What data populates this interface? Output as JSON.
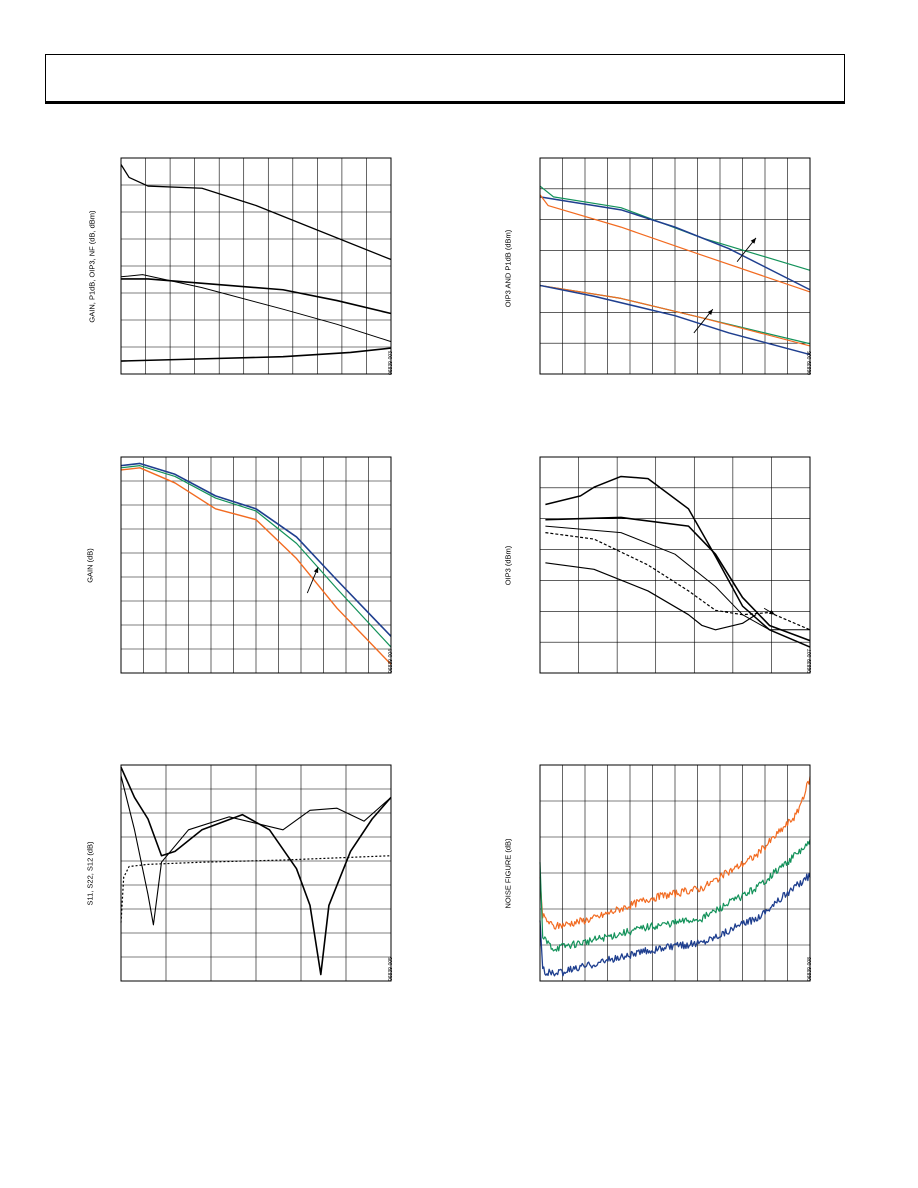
{
  "colors": {
    "black": "#000000",
    "orange": "#f26b21",
    "green": "#13925a",
    "blue": "#1f3f8f"
  },
  "charts": [
    {
      "id": "c1",
      "type": "line",
      "ylabel": "GAIN, P1dB, OIP3, NF (dB, dBm)",
      "fig_id": "06839-003",
      "grid": [
        11,
        8
      ],
      "series": [
        {
          "name": "",
          "color": "black",
          "width": 1.3,
          "points": [
            [
              0,
              0.97
            ],
            [
              0.03,
              0.91
            ],
            [
              0.1,
              0.87
            ],
            [
              0.3,
              0.86
            ],
            [
              0.5,
              0.78
            ],
            [
              0.7,
              0.68
            ],
            [
              1,
              0.53
            ]
          ]
        },
        {
          "name": "",
          "color": "black",
          "width": 1.6,
          "points": [
            [
              0,
              0.44
            ],
            [
              0.1,
              0.44
            ],
            [
              0.4,
              0.41
            ],
            [
              0.6,
              0.39
            ],
            [
              0.8,
              0.34
            ],
            [
              1,
              0.28
            ]
          ]
        },
        {
          "name": "",
          "color": "black",
          "width": 1,
          "points": [
            [
              0,
              0.45
            ],
            [
              0.08,
              0.46
            ],
            [
              0.3,
              0.4
            ],
            [
              0.6,
              0.3
            ],
            [
              0.8,
              0.23
            ],
            [
              1,
              0.15
            ]
          ]
        },
        {
          "name": "",
          "color": "black",
          "width": 1.6,
          "points": [
            [
              0,
              0.06
            ],
            [
              0.3,
              0.07
            ],
            [
              0.6,
              0.08
            ],
            [
              0.85,
              0.1
            ],
            [
              1,
              0.12
            ]
          ]
        }
      ]
    },
    {
      "id": "c2",
      "type": "line",
      "ylabel": "OIP3 AND P1dB (dBm)",
      "fig_id": "06839-006",
      "grid": [
        12,
        7
      ],
      "series": [
        {
          "name": "",
          "color": "green",
          "width": 1.2,
          "points": [
            [
              0,
              0.87
            ],
            [
              0.05,
              0.82
            ],
            [
              0.3,
              0.77
            ],
            [
              0.6,
              0.63
            ],
            [
              1,
              0.48
            ]
          ]
        },
        {
          "name": "",
          "color": "blue",
          "width": 1.5,
          "points": [
            [
              0,
              0.82
            ],
            [
              0.1,
              0.8
            ],
            [
              0.3,
              0.76
            ],
            [
              0.5,
              0.68
            ],
            [
              0.7,
              0.58
            ],
            [
              1,
              0.39
            ]
          ]
        },
        {
          "name": "",
          "color": "orange",
          "width": 1.2,
          "points": [
            [
              0,
              0.83
            ],
            [
              0.03,
              0.78
            ],
            [
              0.3,
              0.68
            ],
            [
              0.6,
              0.55
            ],
            [
              1,
              0.38
            ]
          ]
        },
        {
          "name": "",
          "color": "green",
          "width": 1.2,
          "points": [
            [
              0,
              0.41
            ],
            [
              0.3,
              0.35
            ],
            [
              0.6,
              0.26
            ],
            [
              1,
              0.14
            ]
          ]
        },
        {
          "name": "",
          "color": "orange",
          "width": 1.2,
          "points": [
            [
              0,
              0.41
            ],
            [
              0.3,
              0.35
            ],
            [
              0.6,
              0.26
            ],
            [
              1,
              0.13
            ]
          ]
        },
        {
          "name": "",
          "color": "blue",
          "width": 1.5,
          "points": [
            [
              0,
              0.41
            ],
            [
              0.2,
              0.36
            ],
            [
              0.5,
              0.27
            ],
            [
              0.7,
              0.19
            ],
            [
              1,
              0.09
            ]
          ]
        }
      ],
      "arrows": [
        [
          0.73,
          0.52,
          0.8,
          0.63
        ],
        [
          0.57,
          0.19,
          0.64,
          0.3
        ]
      ]
    },
    {
      "id": "c3",
      "type": "line",
      "ylabel": "GAIN (dB)",
      "fig_id": "06839-004",
      "grid": [
        12,
        9
      ],
      "series": [
        {
          "name": "",
          "color": "blue",
          "width": 1.6,
          "points": [
            [
              0,
              0.96
            ],
            [
              0.07,
              0.97
            ],
            [
              0.2,
              0.92
            ],
            [
              0.35,
              0.82
            ],
            [
              0.5,
              0.76
            ],
            [
              0.65,
              0.63
            ],
            [
              0.8,
              0.43
            ],
            [
              1,
              0.17
            ]
          ]
        },
        {
          "name": "",
          "color": "green",
          "width": 1.2,
          "points": [
            [
              0,
              0.95
            ],
            [
              0.07,
              0.96
            ],
            [
              0.2,
              0.91
            ],
            [
              0.35,
              0.81
            ],
            [
              0.5,
              0.75
            ],
            [
              0.65,
              0.6
            ],
            [
              0.8,
              0.39
            ],
            [
              1,
              0.12
            ]
          ]
        },
        {
          "name": "",
          "color": "orange",
          "width": 1.4,
          "points": [
            [
              0,
              0.94
            ],
            [
              0.07,
              0.95
            ],
            [
              0.2,
              0.88
            ],
            [
              0.35,
              0.76
            ],
            [
              0.5,
              0.71
            ],
            [
              0.65,
              0.53
            ],
            [
              0.8,
              0.3
            ],
            [
              1,
              0.04
            ]
          ]
        }
      ],
      "arrows": [
        [
          0.69,
          0.37,
          0.73,
          0.49
        ]
      ]
    },
    {
      "id": "c4",
      "type": "line",
      "ylabel": "OIP3 (dBm)",
      "fig_id": "06839-007",
      "grid": [
        7,
        7
      ],
      "series": [
        {
          "name": "",
          "color": "black",
          "width": 1.5,
          "points": [
            [
              0.02,
              0.78
            ],
            [
              0.15,
              0.82
            ],
            [
              0.2,
              0.86
            ],
            [
              0.3,
              0.91
            ],
            [
              0.4,
              0.9
            ],
            [
              0.55,
              0.76
            ],
            [
              0.65,
              0.54
            ],
            [
              0.75,
              0.31
            ],
            [
              0.85,
              0.2
            ],
            [
              1,
              0.12
            ]
          ]
        },
        {
          "name": "",
          "color": "black",
          "width": 1.6,
          "points": [
            [
              0.02,
              0.71
            ],
            [
              0.3,
              0.72
            ],
            [
              0.55,
              0.68
            ],
            [
              0.65,
              0.55
            ],
            [
              0.75,
              0.35
            ],
            [
              0.85,
              0.22
            ],
            [
              1,
              0.15
            ]
          ]
        },
        {
          "name": "",
          "color": "black",
          "width": 1,
          "points": [
            [
              0.02,
              0.68
            ],
            [
              0.3,
              0.65
            ],
            [
              0.5,
              0.55
            ],
            [
              0.65,
              0.4
            ],
            [
              0.75,
              0.27
            ],
            [
              0.85,
              0.2
            ],
            [
              1,
              0.2
            ]
          ]
        },
        {
          "name": "",
          "color": "black",
          "width": 1.2,
          "dash": "3,2",
          "points": [
            [
              0.02,
              0.65
            ],
            [
              0.2,
              0.62
            ],
            [
              0.4,
              0.5
            ],
            [
              0.55,
              0.38
            ],
            [
              0.65,
              0.29
            ],
            [
              0.75,
              0.27
            ],
            [
              0.85,
              0.28
            ],
            [
              1,
              0.2
            ]
          ]
        },
        {
          "name": "",
          "color": "black",
          "width": 1.2,
          "points": [
            [
              0.02,
              0.51
            ],
            [
              0.2,
              0.48
            ],
            [
              0.4,
              0.38
            ],
            [
              0.55,
              0.27
            ],
            [
              0.6,
              0.22
            ],
            [
              0.65,
              0.2
            ],
            [
              0.75,
              0.23
            ],
            [
              0.8,
              0.27
            ]
          ]
        }
      ],
      "arrows": [
        [
          0.83,
          0.3,
          0.87,
          0.27
        ]
      ]
    },
    {
      "id": "c5",
      "type": "line",
      "ylabel": "S11, S22, S12 (dB)",
      "fig_id": "06839-005",
      "grid": [
        6,
        9
      ],
      "series": [
        {
          "name": "",
          "color": "black",
          "width": 1.6,
          "points": [
            [
              0,
              0.99
            ],
            [
              0.05,
              0.85
            ],
            [
              0.1,
              0.75
            ],
            [
              0.15,
              0.58
            ],
            [
              0.2,
              0.6
            ],
            [
              0.3,
              0.7
            ],
            [
              0.45,
              0.77
            ],
            [
              0.55,
              0.7
            ],
            [
              0.65,
              0.52
            ],
            [
              0.7,
              0.35
            ],
            [
              0.74,
              0.03
            ],
            [
              0.77,
              0.35
            ],
            [
              0.85,
              0.6
            ],
            [
              0.93,
              0.75
            ],
            [
              1,
              0.85
            ]
          ]
        },
        {
          "name": "",
          "color": "black",
          "width": 1.1,
          "points": [
            [
              0,
              0.95
            ],
            [
              0.05,
              0.7
            ],
            [
              0.1,
              0.4
            ],
            [
              0.12,
              0.26
            ],
            [
              0.15,
              0.55
            ],
            [
              0.25,
              0.7
            ],
            [
              0.4,
              0.76
            ],
            [
              0.6,
              0.7
            ],
            [
              0.7,
              0.79
            ],
            [
              0.8,
              0.8
            ],
            [
              0.9,
              0.74
            ],
            [
              1,
              0.85
            ]
          ]
        },
        {
          "name": "",
          "color": "black",
          "width": 1.2,
          "dash": "2,2",
          "points": [
            [
              0,
              0.27
            ],
            [
              0.01,
              0.48
            ],
            [
              0.03,
              0.53
            ],
            [
              0.1,
              0.54
            ],
            [
              0.3,
              0.55
            ],
            [
              0.6,
              0.56
            ],
            [
              0.8,
              0.57
            ],
            [
              1,
              0.58
            ]
          ]
        }
      ]
    },
    {
      "id": "c6",
      "type": "line",
      "ylabel": "NOISE FIGURE (dB)",
      "fig_id": "06839-008",
      "grid": [
        12,
        6
      ],
      "noise": true,
      "series": [
        {
          "name": "",
          "color": "orange",
          "width": 1.2,
          "points": [
            [
              0,
              0.48
            ],
            [
              0.01,
              0.3
            ],
            [
              0.05,
              0.25
            ],
            [
              0.2,
              0.29
            ],
            [
              0.4,
              0.38
            ],
            [
              0.6,
              0.43
            ],
            [
              0.8,
              0.58
            ],
            [
              0.95,
              0.77
            ],
            [
              1,
              0.94
            ]
          ]
        },
        {
          "name": "",
          "color": "green",
          "width": 1.2,
          "points": [
            [
              0,
              0.55
            ],
            [
              0.01,
              0.2
            ],
            [
              0.05,
              0.15
            ],
            [
              0.2,
              0.19
            ],
            [
              0.4,
              0.25
            ],
            [
              0.6,
              0.29
            ],
            [
              0.8,
              0.43
            ],
            [
              1,
              0.64
            ]
          ]
        },
        {
          "name": "",
          "color": "blue",
          "width": 1.3,
          "points": [
            [
              0,
              0.28
            ],
            [
              0.01,
              0.05
            ],
            [
              0.05,
              0.03
            ],
            [
              0.2,
              0.08
            ],
            [
              0.4,
              0.14
            ],
            [
              0.6,
              0.18
            ],
            [
              0.8,
              0.29
            ],
            [
              1,
              0.49
            ]
          ]
        }
      ]
    }
  ]
}
